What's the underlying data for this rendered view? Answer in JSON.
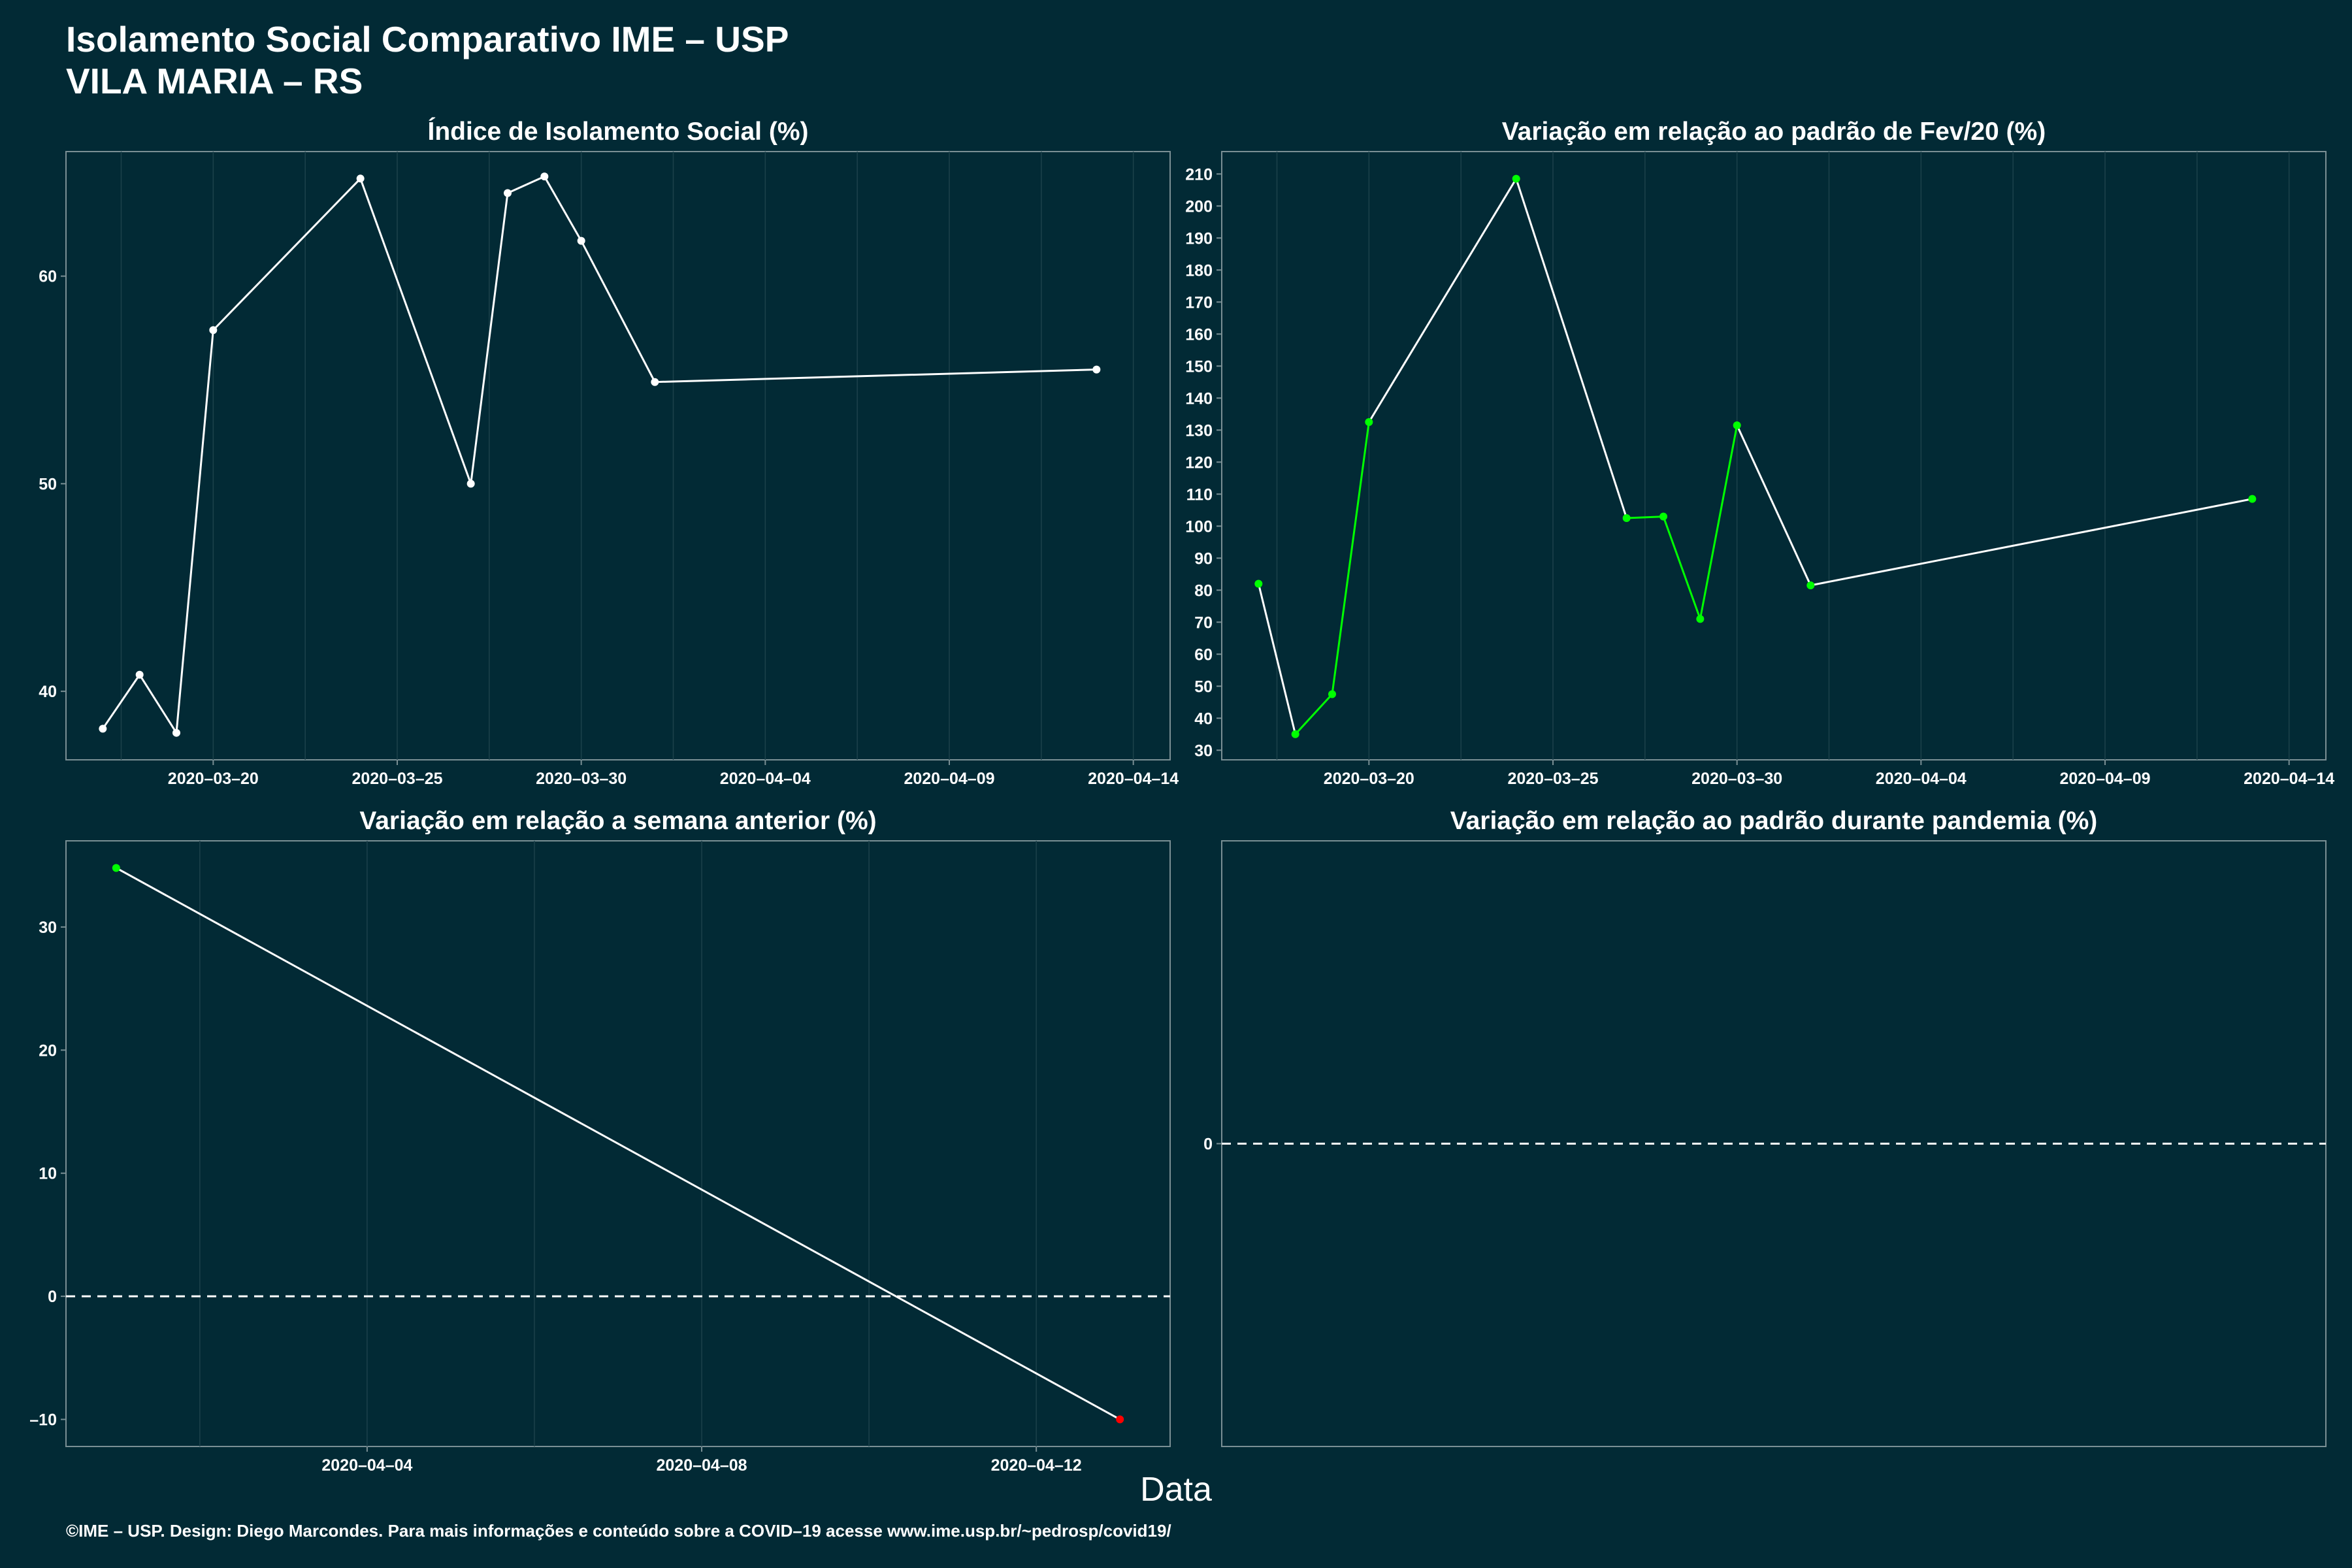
{
  "header": {
    "title_line1": "Isolamento Social Comparativo IME – USP",
    "title_line2": "VILA MARIA – RS"
  },
  "xlabel": "Data",
  "footer": "©IME – USP. Design: Diego Marcondes. Para mais informações e conteúdo sobre a COVID–19 acesse www.ime.usp.br/~pedrosp/covid19/",
  "colors": {
    "background": "#022a35",
    "line": "#ffffff",
    "increase": "#00ff00",
    "decrease": "#ff0000",
    "panel_border": "#7a8f94"
  },
  "chart_data": [
    {
      "type": "line",
      "title": "Índice de Isolamento Social (%)",
      "x": [
        "2020-03-17",
        "2020-03-18",
        "2020-03-19",
        "2020-03-20",
        "2020-03-24",
        "2020-03-27",
        "2020-03-28",
        "2020-03-29",
        "2020-03-30",
        "2020-04-01",
        "2020-04-13"
      ],
      "y": [
        38.2,
        40.8,
        38.0,
        57.4,
        64.7,
        50.0,
        64.0,
        64.8,
        61.7,
        54.9,
        55.5
      ],
      "point_colors": [
        "white",
        "white",
        "white",
        "white",
        "white",
        "white",
        "white",
        "white",
        "white",
        "white",
        "white"
      ],
      "xlim": [
        "2020-03-16",
        "2020-04-15"
      ],
      "ylim": [
        36.7,
        66.0
      ],
      "xticks": [
        "2020-03-20",
        "2020-03-25",
        "2020-03-30",
        "2020-04-04",
        "2020-04-09",
        "2020-04-14"
      ],
      "yticks": [
        40,
        50,
        60
      ],
      "zero_line": false
    },
    {
      "type": "line",
      "title": "Variação em relação ao padrão de Fev/20 (%)",
      "x": [
        "2020-03-17",
        "2020-03-18",
        "2020-03-19",
        "2020-03-20",
        "2020-03-24",
        "2020-03-27",
        "2020-03-28",
        "2020-03-29",
        "2020-03-30",
        "2020-04-01",
        "2020-04-13"
      ],
      "y": [
        82,
        35,
        47.5,
        132.5,
        208.5,
        102.5,
        103,
        71,
        131.5,
        81.5,
        108.5
      ],
      "point_colors": [
        "green",
        "green",
        "green",
        "green",
        "green",
        "green",
        "green",
        "green",
        "green",
        "green",
        "green"
      ],
      "xlim": [
        "2020-03-16",
        "2020-04-15"
      ],
      "ylim": [
        27,
        217
      ],
      "xticks": [
        "2020-03-20",
        "2020-03-25",
        "2020-03-30",
        "2020-04-04",
        "2020-04-09",
        "2020-04-14"
      ],
      "yticks": [
        30,
        40,
        50,
        60,
        70,
        80,
        90,
        100,
        110,
        120,
        130,
        140,
        150,
        160,
        170,
        180,
        190,
        200,
        210
      ],
      "zero_line": false
    },
    {
      "type": "line",
      "title": "Variação em relação a semana anterior (%)",
      "x": [
        "2020-04-01",
        "2020-04-13"
      ],
      "y": [
        34.8,
        -10.0
      ],
      "point_colors": [
        "green",
        "red"
      ],
      "xlim": [
        "2020-03-31.4",
        "2020-04-13.6"
      ],
      "ylim": [
        -12.2,
        37.0
      ],
      "xticks": [
        "2020-04-04",
        "2020-04-08",
        "2020-04-12"
      ],
      "yticks": [
        -10,
        0,
        10,
        20,
        30
      ],
      "zero_line": true
    },
    {
      "type": "line",
      "title": "Variação em relação ao padrão durante pandemia (%)",
      "x": [],
      "y": [],
      "point_colors": [],
      "xlim": null,
      "ylim": [
        -1,
        1
      ],
      "xticks": [],
      "yticks": [
        0
      ],
      "zero_line": true
    }
  ]
}
